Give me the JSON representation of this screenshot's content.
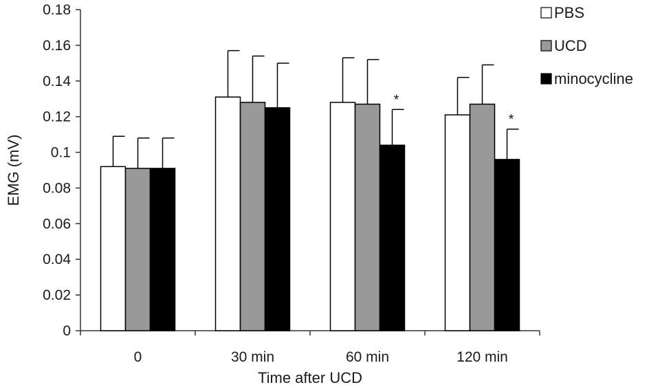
{
  "chart_data": {
    "type": "bar",
    "title": "",
    "xlabel": "Time after UCD",
    "ylabel": "EMG (mV)",
    "ylim": [
      0,
      0.18
    ],
    "yticks": [
      0,
      0.02,
      0.04,
      0.06,
      0.08,
      0.1,
      0.12,
      0.14,
      0.16,
      0.18
    ],
    "ytick_labels": [
      "0",
      "0.02",
      "0.04",
      "0.06",
      "0.08",
      "0.1",
      "0.12",
      "0.14",
      "0.16",
      "0.18"
    ],
    "categories": [
      "0",
      "30 min",
      "60 min",
      "120 min"
    ],
    "legend_position": "top-right",
    "grid": false,
    "series": [
      {
        "name": "PBS",
        "color": "#ffffff",
        "values": [
          0.092,
          0.131,
          0.128,
          0.121
        ],
        "errors": [
          0.017,
          0.026,
          0.025,
          0.021
        ]
      },
      {
        "name": "UCD",
        "color": "#999999",
        "values": [
          0.091,
          0.128,
          0.127,
          0.127
        ],
        "errors": [
          0.017,
          0.026,
          0.025,
          0.022
        ]
      },
      {
        "name": "minocycline",
        "color": "#000000",
        "values": [
          0.091,
          0.125,
          0.104,
          0.096
        ],
        "errors": [
          0.017,
          0.025,
          0.02,
          0.017
        ]
      }
    ],
    "annotations": [
      {
        "text": "*",
        "series": 2,
        "category": 2
      },
      {
        "text": "*",
        "series": 2,
        "category": 3
      }
    ]
  }
}
